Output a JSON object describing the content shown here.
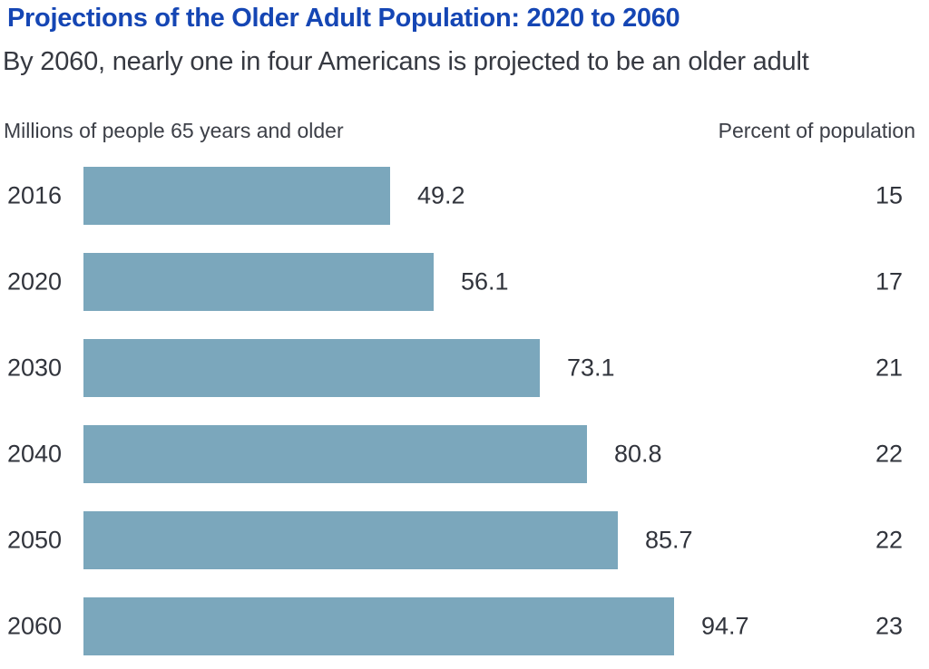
{
  "header": {
    "title": "Projections of the Older Adult Population: 2020 to 2060",
    "subtitle": "By 2060, nearly one in four Americans is projected to be an older adult"
  },
  "columns": {
    "left_header": "Millions of people 65 years and older",
    "right_header": "Percent of population"
  },
  "colors": {
    "title_blue": "#1546B4",
    "bar_fill": "#7BA7BC",
    "text_dark": "#31343C"
  },
  "chart_data": {
    "type": "bar",
    "orientation": "horizontal",
    "title": "Projections of the Older Adult Population: 2020 to 2060",
    "subtitle": "By 2060, nearly one in four Americans is projected to be an older adult",
    "categories": [
      "2016",
      "2020",
      "2030",
      "2040",
      "2050",
      "2060"
    ],
    "series": [
      {
        "name": "Millions of people 65 years and older",
        "values": [
          49.2,
          56.1,
          73.1,
          80.8,
          85.7,
          94.7
        ]
      },
      {
        "name": "Percent of population",
        "values": [
          15,
          17,
          21,
          22,
          22,
          23
        ]
      }
    ],
    "value_labels": true,
    "xlim": [
      0,
      100
    ],
    "grid": false,
    "legend": false,
    "bar_color": "#7BA7BC"
  }
}
